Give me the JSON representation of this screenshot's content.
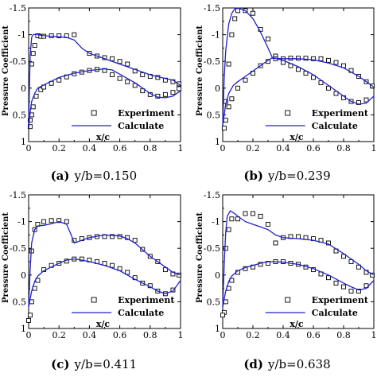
{
  "chart_data": [
    {
      "type": "line",
      "caption_label": "(a)",
      "caption_text": "y/b=0.150",
      "xlabel": "x/c",
      "ylabel": "Pressure Coefficient",
      "xlim": [
        0,
        1
      ],
      "ylim": [
        1,
        -1.5
      ],
      "xticks": [
        "0",
        "0.2",
        "0.4",
        "0.6",
        "0.8",
        "1"
      ],
      "yticks": [
        "-1.5",
        "-1",
        "-0.5",
        "0",
        "0.5",
        "1"
      ],
      "legend": {
        "position": "bottom-right",
        "experiment": "Experiment",
        "calculate": "Calculate"
      },
      "series": [
        {
          "name": "Experiment",
          "style": "markers-square",
          "color": "#000000",
          "x": [
            0.01,
            0.02,
            0.03,
            0.04,
            0.06,
            0.08,
            0.1,
            0.15,
            0.2,
            0.25,
            0.3,
            0.4,
            0.45,
            0.5,
            0.55,
            0.6,
            0.65,
            0.7,
            0.75,
            0.8,
            0.85,
            0.9,
            0.95,
            0.99,
            0.01,
            0.02,
            0.03,
            0.05,
            0.08,
            0.1,
            0.15,
            0.2,
            0.25,
            0.3,
            0.35,
            0.4,
            0.45,
            0.5,
            0.55,
            0.6,
            0.65,
            0.7,
            0.75,
            0.8,
            0.85,
            0.9,
            0.95,
            0.99
          ],
          "y": [
            0.6,
            -0.45,
            -0.65,
            -0.8,
            -0.98,
            -0.97,
            -0.97,
            -0.98,
            -0.98,
            -0.98,
            -1.0,
            -0.65,
            -0.6,
            -0.57,
            -0.55,
            -0.5,
            -0.45,
            -0.32,
            -0.25,
            -0.22,
            -0.2,
            -0.15,
            -0.12,
            -0.08,
            0.72,
            0.5,
            0.35,
            0.15,
            0.03,
            -0.02,
            -0.09,
            -0.15,
            -0.21,
            -0.27,
            -0.3,
            -0.33,
            -0.35,
            -0.33,
            -0.25,
            -0.18,
            -0.12,
            -0.05,
            0.05,
            0.12,
            0.15,
            0.12,
            0.08,
            0.01
          ]
        },
        {
          "name": "Calculate",
          "style": "line",
          "color": "#2222cc",
          "upper_x": [
            0,
            0.005,
            0.01,
            0.02,
            0.03,
            0.05,
            0.08,
            0.1,
            0.15,
            0.2,
            0.25,
            0.3,
            0.35,
            0.4,
            0.45,
            0.5,
            0.55,
            0.6,
            0.7,
            0.8,
            0.9,
            0.95,
            1.0
          ],
          "upper_y": [
            0.75,
            0.0,
            -0.6,
            -0.95,
            -1.0,
            -1.01,
            -0.99,
            -0.98,
            -0.97,
            -0.96,
            -0.95,
            -0.9,
            -0.75,
            -0.65,
            -0.6,
            -0.55,
            -0.5,
            -0.45,
            -0.35,
            -0.25,
            -0.18,
            -0.15,
            -0.05
          ],
          "lower_x": [
            0,
            0.005,
            0.01,
            0.02,
            0.04,
            0.06,
            0.1,
            0.15,
            0.2,
            0.3,
            0.4,
            0.5,
            0.55,
            0.6,
            0.7,
            0.75,
            0.8,
            0.85,
            0.9,
            0.95,
            1.0
          ],
          "lower_y": [
            0.75,
            0.6,
            0.45,
            0.25,
            0.1,
            0.0,
            -0.06,
            -0.13,
            -0.2,
            -0.28,
            -0.33,
            -0.36,
            -0.34,
            -0.26,
            -0.1,
            0.0,
            0.1,
            0.17,
            0.18,
            0.15,
            0.05
          ]
        }
      ]
    },
    {
      "type": "line",
      "caption_label": "(b)",
      "caption_text": "y/b=0.239",
      "xlabel": "x/c",
      "ylabel": "Pressure Coefficient",
      "xlim": [
        0,
        1
      ],
      "ylim": [
        1,
        -1.5
      ],
      "xticks": [
        "0",
        "0.2",
        "0.4",
        "0.6",
        "0.8",
        "1"
      ],
      "yticks": [
        "-1.5",
        "-1",
        "-0.5",
        "0",
        "0.5",
        "1"
      ],
      "legend": {
        "position": "bottom-right",
        "experiment": "Experiment",
        "calculate": "Calculate"
      },
      "series": [
        {
          "name": "Experiment",
          "style": "markers-square",
          "color": "#000000",
          "x": [
            0.02,
            0.04,
            0.06,
            0.08,
            0.1,
            0.15,
            0.2,
            0.25,
            0.3,
            0.35,
            0.4,
            0.45,
            0.5,
            0.55,
            0.6,
            0.65,
            0.7,
            0.75,
            0.8,
            0.85,
            0.9,
            0.95,
            0.99,
            0.01,
            0.02,
            0.04,
            0.06,
            0.1,
            0.15,
            0.2,
            0.25,
            0.3,
            0.35,
            0.4,
            0.45,
            0.5,
            0.55,
            0.6,
            0.65,
            0.7,
            0.75,
            0.8,
            0.85,
            0.9,
            0.95
          ],
          "y": [
            0.25,
            -0.45,
            -1.0,
            -1.3,
            -1.45,
            -1.45,
            -1.4,
            -1.1,
            -0.92,
            -0.6,
            -0.55,
            -0.56,
            -0.56,
            -0.56,
            -0.55,
            -0.55,
            -0.52,
            -0.48,
            -0.42,
            -0.33,
            -0.22,
            -0.12,
            -0.04,
            0.75,
            0.6,
            0.35,
            0.2,
            0.0,
            -0.15,
            -0.28,
            -0.42,
            -0.5,
            -0.55,
            -0.48,
            -0.42,
            -0.35,
            -0.28,
            -0.2,
            -0.1,
            0.0,
            0.1,
            0.18,
            0.25,
            0.27,
            0.22
          ]
        },
        {
          "name": "Calculate",
          "style": "line",
          "color": "#2222cc",
          "upper_x": [
            0,
            0.01,
            0.02,
            0.04,
            0.06,
            0.08,
            0.1,
            0.12,
            0.15,
            0.2,
            0.25,
            0.3,
            0.33,
            0.4,
            0.5,
            0.6,
            0.7,
            0.8,
            0.9,
            0.95,
            1.0
          ],
          "upper_y": [
            0.7,
            -0.2,
            -0.7,
            -1.2,
            -1.4,
            -1.48,
            -1.5,
            -1.48,
            -1.45,
            -1.3,
            -1.05,
            -0.75,
            -0.56,
            -0.55,
            -0.55,
            -0.53,
            -0.47,
            -0.38,
            -0.22,
            -0.12,
            -0.02
          ],
          "lower_x": [
            0,
            0.01,
            0.02,
            0.04,
            0.07,
            0.1,
            0.15,
            0.2,
            0.25,
            0.3,
            0.33,
            0.4,
            0.5,
            0.6,
            0.7,
            0.8,
            0.85,
            0.9,
            0.95,
            1.0
          ],
          "lower_y": [
            0.7,
            0.5,
            0.3,
            0.1,
            -0.05,
            -0.12,
            -0.22,
            -0.32,
            -0.42,
            -0.52,
            -0.57,
            -0.52,
            -0.4,
            -0.25,
            -0.05,
            0.15,
            0.25,
            0.3,
            0.28,
            0.15
          ]
        }
      ]
    },
    {
      "type": "line",
      "caption_label": "(c)",
      "caption_text": "y/b=0.411",
      "xlabel": "x/c",
      "ylabel": "Pressure Coefficient",
      "xlim": [
        0,
        1
      ],
      "ylim": [
        1,
        -1.5
      ],
      "xticks": [
        "0",
        "0.2",
        "0.4",
        "0.6",
        "0.8",
        "1"
      ],
      "yticks": [
        "-1.5",
        "-1",
        "-0.5",
        "0",
        "0.5",
        "1"
      ],
      "legend": {
        "position": "bottom-right",
        "experiment": "Experiment",
        "calculate": "Calculate"
      },
      "series": [
        {
          "name": "Experiment",
          "style": "markers-square",
          "color": "#000000",
          "x": [
            0.01,
            0.02,
            0.04,
            0.06,
            0.1,
            0.15,
            0.2,
            0.25,
            0.3,
            0.35,
            0.4,
            0.45,
            0.5,
            0.55,
            0.6,
            0.65,
            0.7,
            0.75,
            0.8,
            0.85,
            0.9,
            0.95,
            0.99,
            0.0,
            0.02,
            0.04,
            0.06,
            0.1,
            0.15,
            0.2,
            0.25,
            0.3,
            0.35,
            0.4,
            0.45,
            0.5,
            0.55,
            0.6,
            0.65,
            0.7,
            0.75,
            0.8,
            0.85,
            0.9,
            0.95
          ],
          "y": [
            0.75,
            -0.45,
            -0.85,
            -0.95,
            -1.0,
            -1.02,
            -1.02,
            -1.0,
            -0.65,
            -0.68,
            -0.7,
            -0.72,
            -0.72,
            -0.72,
            -0.72,
            -0.7,
            -0.65,
            -0.48,
            -0.35,
            -0.25,
            -0.1,
            -0.02,
            0.0,
            0.85,
            0.5,
            0.25,
            0.1,
            -0.1,
            -0.18,
            -0.22,
            -0.26,
            -0.3,
            -0.3,
            -0.28,
            -0.25,
            -0.22,
            -0.18,
            -0.12,
            -0.05,
            0.05,
            0.15,
            0.2,
            0.3,
            0.35,
            0.28
          ]
        },
        {
          "name": "Calculate",
          "style": "line",
          "color": "#2222cc",
          "upper_x": [
            0,
            0.01,
            0.02,
            0.04,
            0.06,
            0.1,
            0.15,
            0.2,
            0.25,
            0.28,
            0.3,
            0.35,
            0.4,
            0.5,
            0.6,
            0.65,
            0.7,
            0.8,
            0.9,
            0.95,
            1.0
          ],
          "upper_y": [
            0.6,
            -0.1,
            -0.6,
            -0.85,
            -0.92,
            -0.93,
            -0.96,
            -1.0,
            -0.95,
            -0.75,
            -0.6,
            -0.65,
            -0.7,
            -0.75,
            -0.73,
            -0.68,
            -0.6,
            -0.35,
            -0.15,
            -0.05,
            0.0
          ],
          "lower_x": [
            0,
            0.01,
            0.02,
            0.04,
            0.06,
            0.1,
            0.15,
            0.2,
            0.25,
            0.3,
            0.35,
            0.4,
            0.5,
            0.6,
            0.7,
            0.8,
            0.85,
            0.9,
            0.95,
            1.0
          ],
          "lower_y": [
            0.6,
            0.45,
            0.3,
            0.12,
            0.02,
            -0.08,
            -0.15,
            -0.22,
            -0.28,
            -0.3,
            -0.28,
            -0.25,
            -0.18,
            -0.08,
            0.08,
            0.22,
            0.3,
            0.35,
            0.3,
            0.1
          ]
        }
      ]
    },
    {
      "type": "line",
      "caption_label": "(d)",
      "caption_text": "y/b=0.638",
      "xlabel": "x/c",
      "ylabel": "Pressure Coefficient",
      "xlim": [
        0,
        1
      ],
      "ylim": [
        1,
        -1.5
      ],
      "xticks": [
        "0",
        "0.2",
        "0.4",
        "0.6",
        "0.8",
        "1"
      ],
      "yticks": [
        "-1.5",
        "-1",
        "-0.5",
        "0",
        "0.5",
        "1"
      ],
      "legend": {
        "position": "bottom-right",
        "experiment": "Experiment",
        "calculate": "Calculate"
      },
      "series": [
        {
          "name": "Experiment",
          "style": "markers-square",
          "color": "#000000",
          "x": [
            0.01,
            0.02,
            0.04,
            0.06,
            0.1,
            0.15,
            0.2,
            0.25,
            0.3,
            0.35,
            0.4,
            0.45,
            0.5,
            0.55,
            0.6,
            0.65,
            0.7,
            0.75,
            0.8,
            0.85,
            0.9,
            0.95,
            0.99,
            0.0,
            0.02,
            0.04,
            0.06,
            0.1,
            0.15,
            0.2,
            0.25,
            0.3,
            0.35,
            0.4,
            0.45,
            0.5,
            0.55,
            0.6,
            0.65,
            0.7,
            0.75,
            0.8,
            0.85,
            0.9,
            0.95
          ],
          "y": [
            0.7,
            -0.5,
            -0.85,
            -1.05,
            -1.05,
            -1.15,
            -1.15,
            -1.1,
            -0.95,
            -0.6,
            -0.7,
            -0.72,
            -0.72,
            -0.7,
            -0.68,
            -0.65,
            -0.6,
            -0.45,
            -0.35,
            -0.25,
            -0.15,
            -0.05,
            0.0,
            0.75,
            0.5,
            0.25,
            0.1,
            -0.05,
            -0.12,
            -0.15,
            -0.2,
            -0.22,
            -0.25,
            -0.25,
            -0.22,
            -0.2,
            -0.15,
            -0.1,
            -0.02,
            0.05,
            0.15,
            0.22,
            0.3,
            0.3,
            0.2
          ]
        },
        {
          "name": "Calculate",
          "style": "line",
          "color": "#2222cc",
          "upper_x": [
            0,
            0.01,
            0.02,
            0.03,
            0.05,
            0.08,
            0.1,
            0.15,
            0.2,
            0.25,
            0.3,
            0.35,
            0.4,
            0.5,
            0.6,
            0.7,
            0.8,
            0.9,
            0.95,
            1.0
          ],
          "upper_y": [
            0.6,
            -0.2,
            -0.8,
            -1.1,
            -1.2,
            -1.15,
            -1.1,
            -1.0,
            -0.95,
            -0.9,
            -0.85,
            -0.75,
            -0.7,
            -0.68,
            -0.65,
            -0.58,
            -0.4,
            -0.2,
            -0.08,
            0.0
          ],
          "lower_x": [
            0,
            0.01,
            0.02,
            0.04,
            0.06,
            0.1,
            0.15,
            0.2,
            0.25,
            0.3,
            0.35,
            0.4,
            0.5,
            0.6,
            0.7,
            0.8,
            0.85,
            0.9,
            0.95,
            1.0
          ],
          "lower_y": [
            0.6,
            0.45,
            0.3,
            0.12,
            0.02,
            -0.08,
            -0.14,
            -0.18,
            -0.22,
            -0.25,
            -0.25,
            -0.24,
            -0.2,
            -0.12,
            0.0,
            0.15,
            0.22,
            0.28,
            0.25,
            0.1
          ]
        }
      ]
    }
  ]
}
